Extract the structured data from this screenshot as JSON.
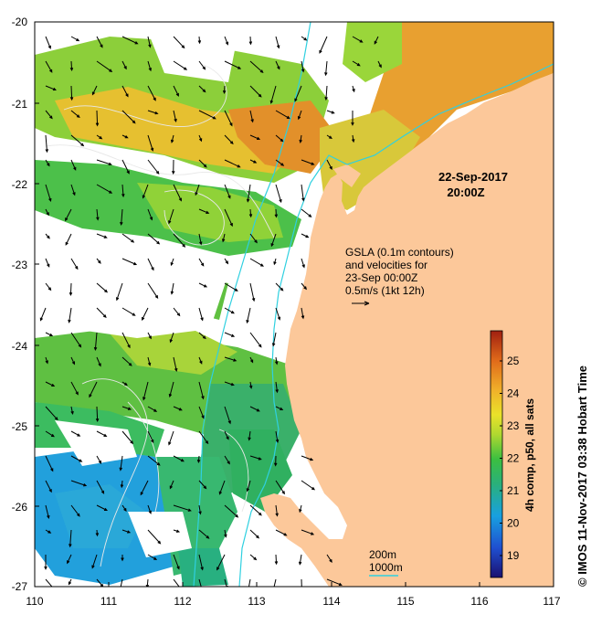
{
  "date_title": "22-Sep-2017",
  "time_title": "20:00Z",
  "gsla_note": {
    "line1": "GSLA (0.1m contours)",
    "line2": "and velocities for",
    "line3": "23-Sep 00:00Z",
    "line4": "0.5m/s (1kt 12h)"
  },
  "bathy_legend": {
    "line1": "200m",
    "line2": "1000m"
  },
  "colorbar": {
    "label": "4h comp, p50, all sats",
    "ticks": [
      "19",
      "20",
      "21",
      "22",
      "23",
      "24",
      "25"
    ],
    "colors": [
      "#2a1a8c",
      "#1f5fd8",
      "#17a6e0",
      "#2fbf6a",
      "#8fd43a",
      "#e8e62a",
      "#f0b42a",
      "#e07a1e",
      "#b03010"
    ]
  },
  "credit": "© IMOS 11-Nov-2017 03:38 Hobart Time",
  "x_ticks": [
    "110",
    "111",
    "112",
    "113",
    "114",
    "115",
    "116",
    "117"
  ],
  "y_ticks": [
    "-20",
    "-21",
    "-22",
    "-23",
    "-24",
    "-25",
    "-26",
    "-27"
  ],
  "colors": {
    "land": "#fcc89a",
    "coast_contour": "#2fd0e0",
    "gsla_contour": "#e8e8e8"
  }
}
